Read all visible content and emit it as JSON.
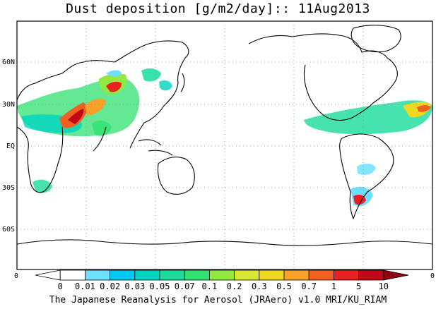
{
  "title": "Dust deposition [g/m2/day]:: 11Aug2013",
  "credit": "The Japanese Reanalysis for Aerosol (JRAero) v1.0 MRI/KU_RIAM",
  "lat_labels": [
    "60N",
    "30N",
    "EQ",
    "30S",
    "60S"
  ],
  "corner_labels": {
    "left": "0",
    "right": "0"
  },
  "colorbar": {
    "labels": [
      "0",
      "0.01",
      "0.02",
      "0.03",
      "0.05",
      "0.07",
      "0.1",
      "0.2",
      "0.3",
      "0.5",
      "0.7",
      "1",
      "5",
      "10"
    ],
    "colors": [
      "#ffffff",
      "#ffffff",
      "#6ee0ff",
      "#00c8f0",
      "#00d4c0",
      "#18dc9c",
      "#30e070",
      "#90e840",
      "#d8e830",
      "#f0d820",
      "#f8a028",
      "#f06020",
      "#e82020",
      "#c00818",
      "#900010"
    ]
  }
}
